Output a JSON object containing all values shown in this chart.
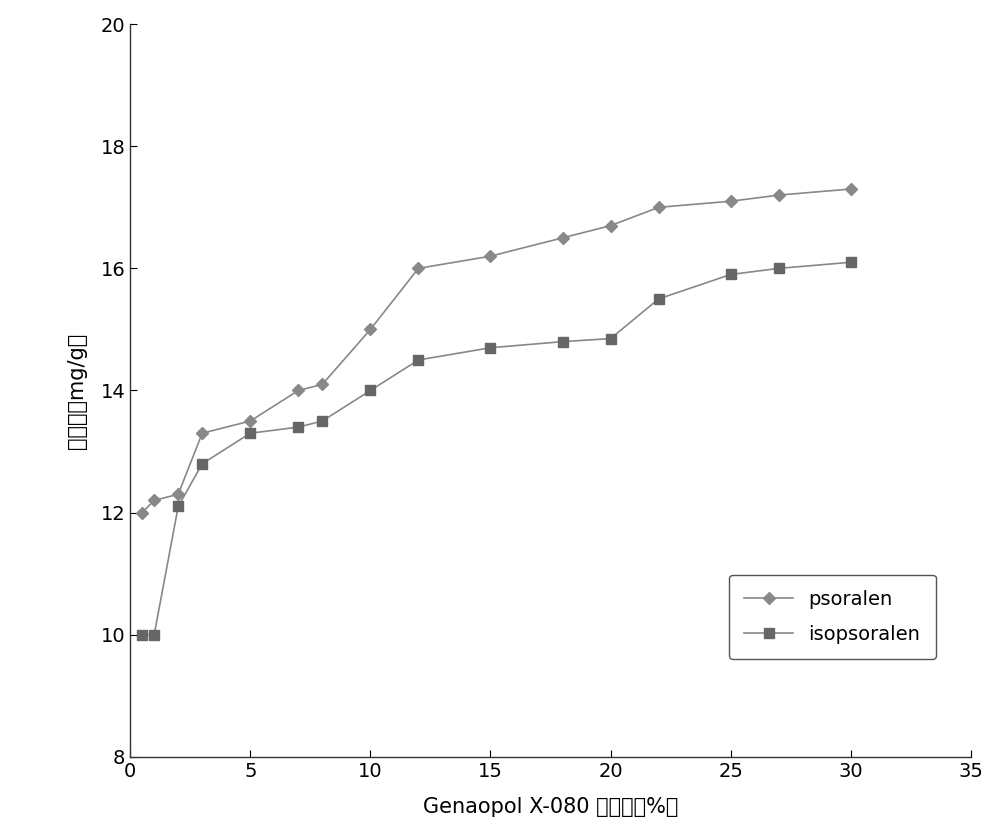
{
  "psoralen_x": [
    0.5,
    1,
    2,
    3,
    5,
    7,
    8,
    10,
    12,
    15,
    18,
    20,
    22,
    25,
    27,
    30
  ],
  "psoralen_y": [
    12.0,
    12.2,
    12.3,
    13.3,
    13.5,
    14.0,
    14.1,
    15.0,
    16.0,
    16.2,
    16.5,
    16.7,
    17.0,
    17.1,
    17.2,
    17.3
  ],
  "isopsoralen_x": [
    0.5,
    1,
    2,
    3,
    5,
    7,
    8,
    10,
    12,
    15,
    18,
    20,
    22,
    25,
    27,
    30
  ],
  "isopsoralen_y": [
    10.0,
    10.0,
    12.1,
    12.8,
    13.3,
    13.4,
    13.5,
    14.0,
    14.5,
    14.7,
    14.8,
    14.85,
    15.5,
    15.9,
    16.0,
    16.1
  ],
  "xlabel": "Genaopol X-080 的浓度（%）",
  "ylabel": "提取率（mg/g）",
  "xlim": [
    0,
    35
  ],
  "ylim": [
    8,
    20
  ],
  "xticks": [
    0,
    5,
    10,
    15,
    20,
    25,
    30,
    35
  ],
  "yticks": [
    8,
    10,
    12,
    14,
    16,
    18,
    20
  ],
  "legend_psoralen": "psoralen",
  "legend_isopsoralen": "isopsoralen",
  "line_color": "#888888",
  "marker_diamond_color": "#888888",
  "marker_square_color": "#666666",
  "background_color": "#ffffff",
  "axis_fontsize": 15,
  "tick_fontsize": 14,
  "legend_fontsize": 14
}
